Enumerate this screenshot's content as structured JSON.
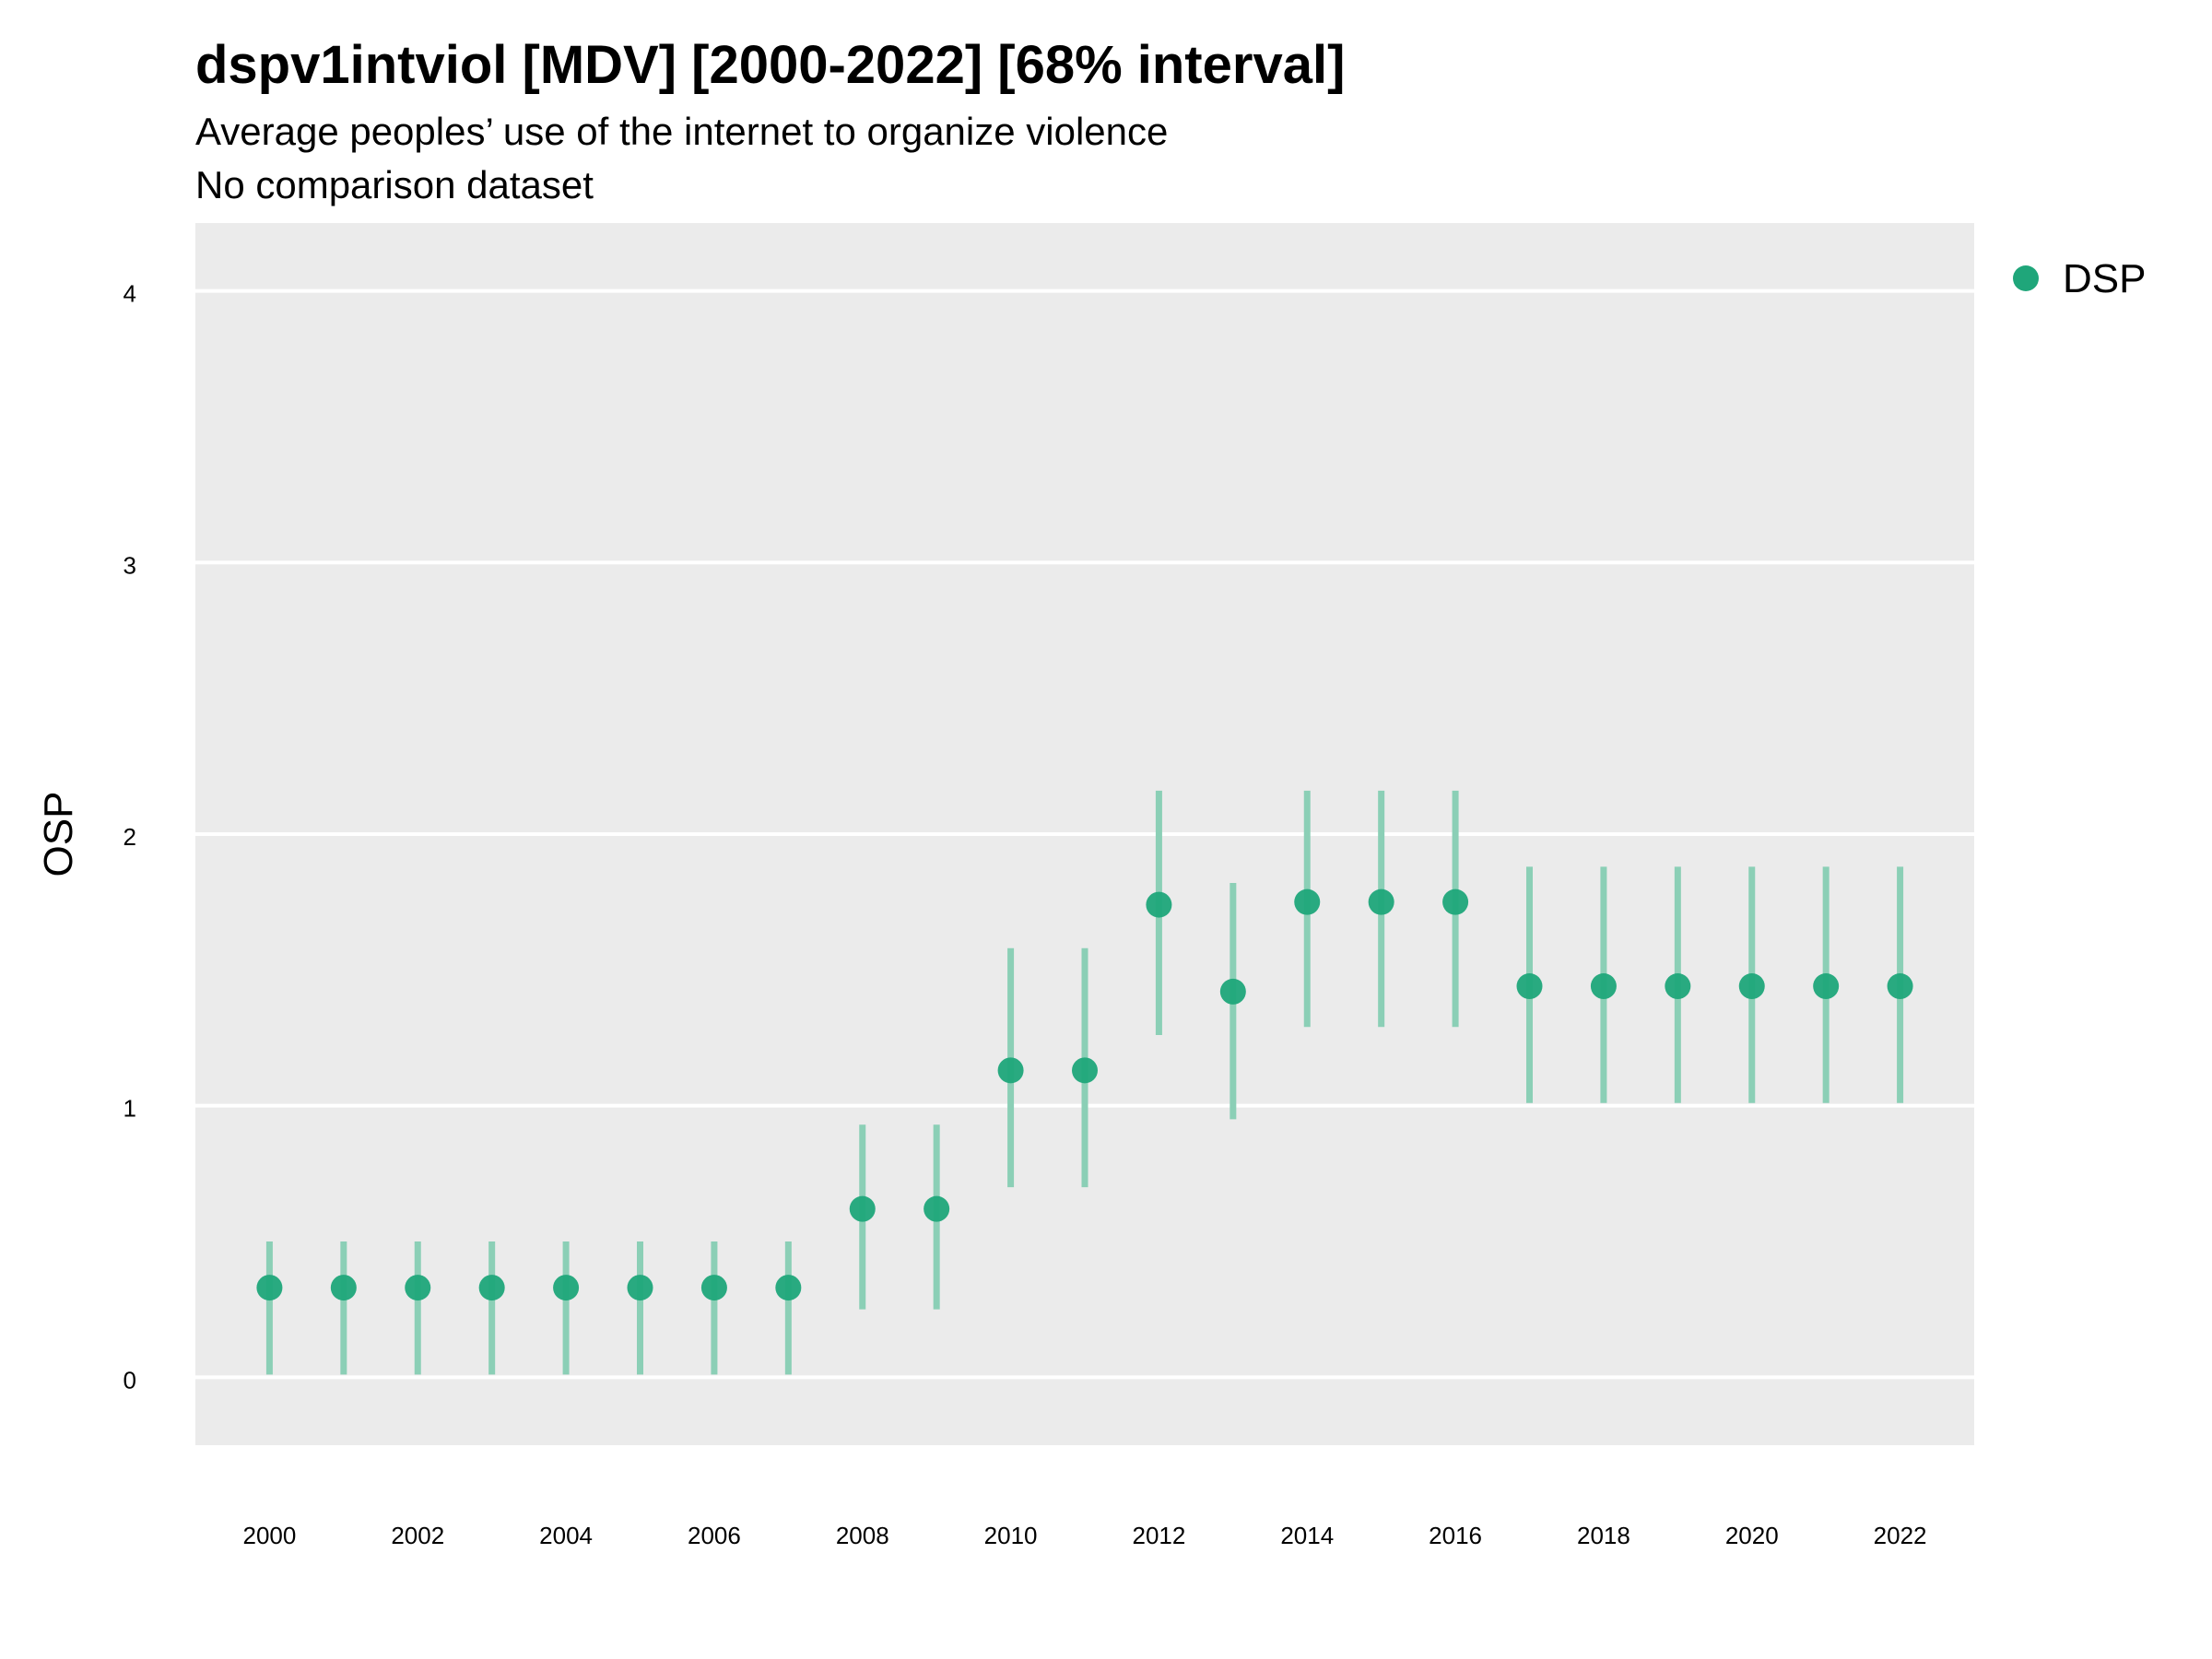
{
  "chart_data": {
    "type": "scatter",
    "title": "dspv1intviol [MDV] [2000-2022] [68% interval]",
    "subtitle": "Average peoples’ use of the internet to organize violence",
    "subtitle2": "No comparison dataset",
    "xlabel": "",
    "ylabel": "OSP",
    "xlim": [
      1999,
      2023
    ],
    "ylim": [
      -0.25,
      4.25
    ],
    "x_ticks": [
      "2000",
      "2002",
      "2004",
      "2006",
      "2008",
      "2010",
      "2012",
      "2014",
      "2016",
      "2018",
      "2020",
      "2022"
    ],
    "y_ticks": [
      "0",
      "1",
      "2",
      "3",
      "4"
    ],
    "grid": true,
    "legend_position": "right",
    "colors": {
      "point": "#1fa67a",
      "interval": "#8bcfb6",
      "panel": "#ebebeb",
      "grid": "#ffffff"
    },
    "series": [
      {
        "name": "DSP",
        "x": [
          2000,
          2001,
          2002,
          2003,
          2004,
          2005,
          2006,
          2007,
          2008,
          2009,
          2010,
          2011,
          2012,
          2013,
          2014,
          2015,
          2016,
          2017,
          2018,
          2019,
          2020,
          2021,
          2022
        ],
        "y": [
          0.33,
          0.33,
          0.33,
          0.33,
          0.33,
          0.33,
          0.33,
          0.33,
          0.62,
          0.62,
          1.13,
          1.13,
          1.74,
          1.42,
          1.75,
          1.75,
          1.75,
          1.44,
          1.44,
          1.44,
          1.44,
          1.44,
          1.44
        ],
        "lower": [
          0.01,
          0.01,
          0.01,
          0.01,
          0.01,
          0.01,
          0.01,
          0.01,
          0.25,
          0.25,
          0.7,
          0.7,
          1.26,
          0.95,
          1.29,
          1.29,
          1.29,
          1.01,
          1.01,
          1.01,
          1.01,
          1.01,
          1.01
        ],
        "upper": [
          0.5,
          0.5,
          0.5,
          0.5,
          0.5,
          0.5,
          0.5,
          0.5,
          0.93,
          0.93,
          1.58,
          1.58,
          2.16,
          1.82,
          2.16,
          2.16,
          2.16,
          1.88,
          1.88,
          1.88,
          1.88,
          1.88,
          1.88
        ]
      }
    ]
  }
}
